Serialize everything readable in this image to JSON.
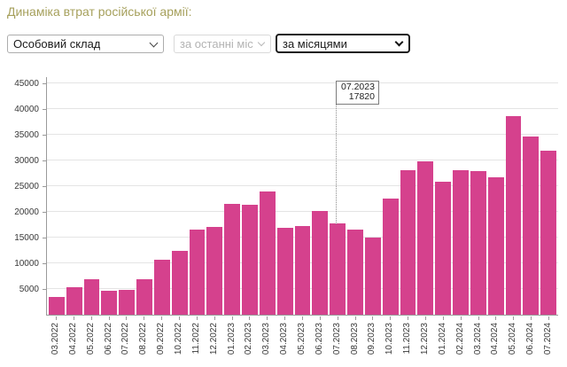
{
  "page": {
    "title": "Динаміка втрат російської армії:"
  },
  "controls": {
    "category": {
      "value": "Особовий склад",
      "disabled": false
    },
    "period": {
      "value": "за останні місяці",
      "disabled": true
    },
    "grouping": {
      "value": "за місяцями",
      "disabled": false
    }
  },
  "tooltip": {
    "label": "07.2023",
    "value": "17820"
  },
  "chart_data": {
    "type": "bar",
    "title": "",
    "xlabel": "",
    "ylabel": "",
    "categories": [
      "03.2022",
      "04.2022",
      "05.2022",
      "06.2022",
      "07.2022",
      "08.2022",
      "09.2022",
      "10.2022",
      "11.2022",
      "12.2022",
      "01.2023",
      "02.2023",
      "03.2023",
      "04.2023",
      "05.2023",
      "06.2023",
      "07.2023",
      "08.2023",
      "09.2023",
      "10.2023",
      "11.2023",
      "12.2023",
      "01.2024",
      "02.2024",
      "03.2024",
      "04.2024",
      "05.2024",
      "06.2024",
      "07.2024"
    ],
    "values": [
      3400,
      5300,
      7000,
      4700,
      4900,
      7000,
      10800,
      12500,
      16700,
      17100,
      21600,
      21400,
      24100,
      16900,
      17300,
      20300,
      17820,
      16600,
      15000,
      22700,
      28300,
      29900,
      26000,
      28200,
      28000,
      26900,
      38800,
      34800,
      32000
    ],
    "yticks": [
      5000,
      10000,
      15000,
      20000,
      25000,
      30000,
      35000,
      40000,
      45000
    ],
    "ylim": [
      0,
      46400
    ],
    "grid": true,
    "legend": "none",
    "bar_color": "#d5418d",
    "highlight": {
      "category": "07.2023",
      "value": 17820
    }
  },
  "colors": {
    "title_text": "#a6a05c",
    "bar": "#d5418d",
    "gridline": "#e4e4e4",
    "axis": "#9a9a9a",
    "tick_text": "#3a3a3a",
    "disabled_text": "#b3b3b3",
    "focused_border": "#1b1b1b"
  }
}
